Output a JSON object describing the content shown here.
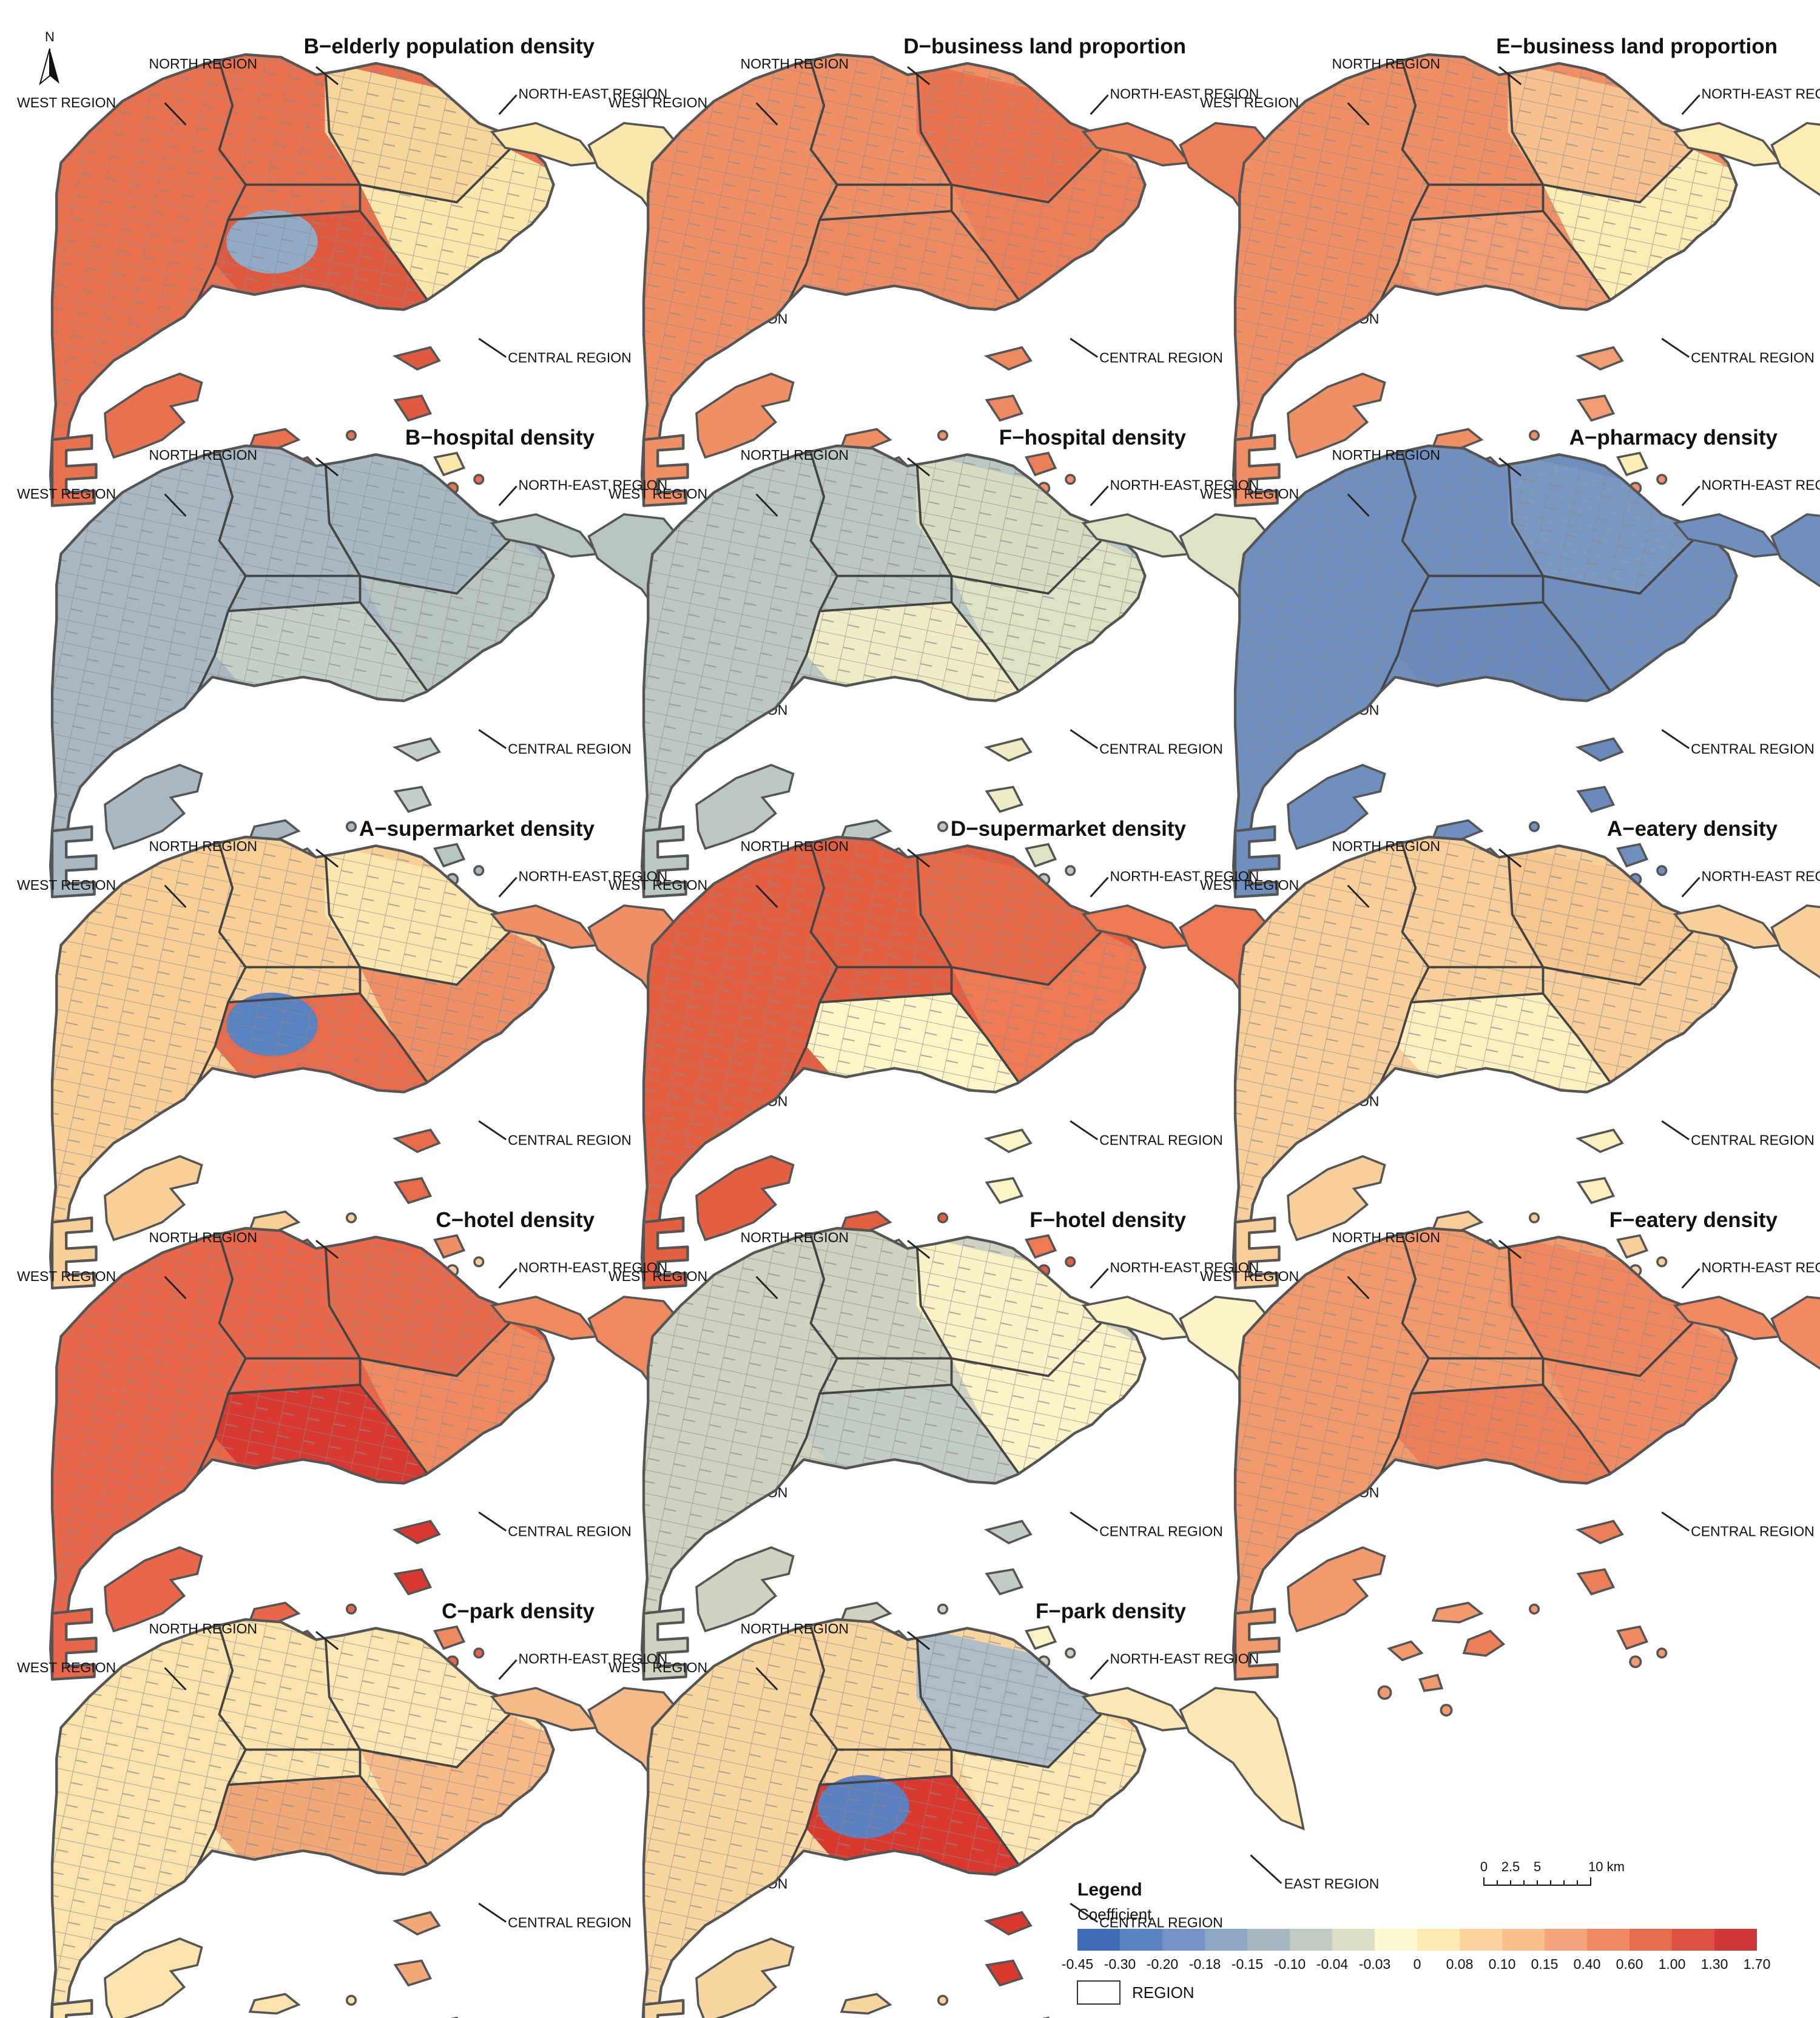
{
  "north_arrow_label": "N",
  "region_labels": {
    "north": "NORTH REGION",
    "west": "WEST REGION",
    "north_east": "NORTH-EAST REGION",
    "east": "EAST REGION",
    "central": "CENTRAL REGION"
  },
  "panels": [
    {
      "title": "B−elderly population density",
      "base": "#e8714f",
      "east": "#fbe6ac",
      "central": "#dd5a40",
      "blob": "#93aac6",
      "ne": "#f8d69b"
    },
    {
      "title": "D−business land proportion",
      "base": "#ef8f66",
      "east": "#ed7f58",
      "central": "#ee8a61",
      "blob": null,
      "ne": "#ea7450"
    },
    {
      "title": "E−business land proportion",
      "base": "#ef8f66",
      "east": "#fdecb4",
      "central": "#f19c72",
      "blob": null,
      "ne": "#f7c08f"
    },
    {
      "title": "B−hospital density",
      "base": "#a9b8c2",
      "east": "#b8c4c2",
      "central": "#c4cfc6",
      "blob": null,
      "ne": "#a8b8c3"
    },
    {
      "title": "F−hospital density",
      "base": "#bcc7c3",
      "east": "#dfe2c4",
      "central": "#eeecc6",
      "blob": null,
      "ne": "#d8ddc2"
    },
    {
      "title": "A−pharmacy density",
      "base": "#6f8fbe",
      "east": "#6f8fbe",
      "central": "#6a8abb",
      "blob": null,
      "ne": "#7b98c2"
    },
    {
      "title": "A−supermarket density",
      "base": "#f9cf98",
      "east": "#ef8f66",
      "central": "#e86b4c",
      "blob": "#5b82c0",
      "ne": "#fbe6b0"
    },
    {
      "title": "D−supermarket density",
      "base": "#e25f42",
      "east": "#ed7a53",
      "central": "#fdf4c8",
      "blob": null,
      "ne": "#e66a48"
    },
    {
      "title": "A−eatery density",
      "base": "#f8cf9a",
      "east": "#f8cf9a",
      "central": "#fdf0c0",
      "blob": null,
      "ne": "#f6c690"
    },
    {
      "title": "C−hotel density",
      "base": "#e8674a",
      "east": "#ef8a60",
      "central": "#d83a31",
      "blob": null,
      "ne": "#e66a4b"
    },
    {
      "title": "F−hotel density",
      "base": "#cdd3c0",
      "east": "#fdf3c8",
      "central": "#c3ccc3",
      "blob": null,
      "ne": "#fbf1c6"
    },
    {
      "title": "F−eatery density",
      "base": "#f19a6e",
      "east": "#ef8a62",
      "central": "#ec7e58",
      "blob": null,
      "ne": "#ee8760"
    },
    {
      "title": "C−park density",
      "base": "#fbe3ad",
      "east": "#f6b988",
      "central": "#f3a878",
      "blob": null,
      "ne": "#fbe6b4"
    },
    {
      "title": "F−park density",
      "base": "#f9d5a0",
      "east": "#fbe7b4",
      "central": "#d9392f",
      "blob": "#5b7fbf",
      "ne": "#aebdc7"
    }
  ],
  "legend": {
    "title": "Legend",
    "subtitle": "Coefficient",
    "colors": [
      "#3f6cb5",
      "#5a83c0",
      "#7393c4",
      "#8ea7c4",
      "#a7b8c2",
      "#c1cbc3",
      "#dbdfc3",
      "#fdf9cf",
      "#fde9b1",
      "#fbd49d",
      "#f8c08d",
      "#f4a57c",
      "#ef8a64",
      "#e66c4f",
      "#dc5142",
      "#d1373b"
    ],
    "ticks": [
      "-0.45",
      "-0.30",
      "-0.20",
      "-0.18",
      "-0.15",
      "-0.10",
      "-0.04",
      "-0.03",
      "0",
      "0.08",
      "0.10",
      "0.15",
      "0.40",
      "0.60",
      "1.00",
      "1.30",
      "1.70"
    ],
    "region_swatch_label": "REGION"
  },
  "scale_bar": {
    "labels": [
      "0",
      "2.5",
      "5",
      "10 km"
    ]
  }
}
